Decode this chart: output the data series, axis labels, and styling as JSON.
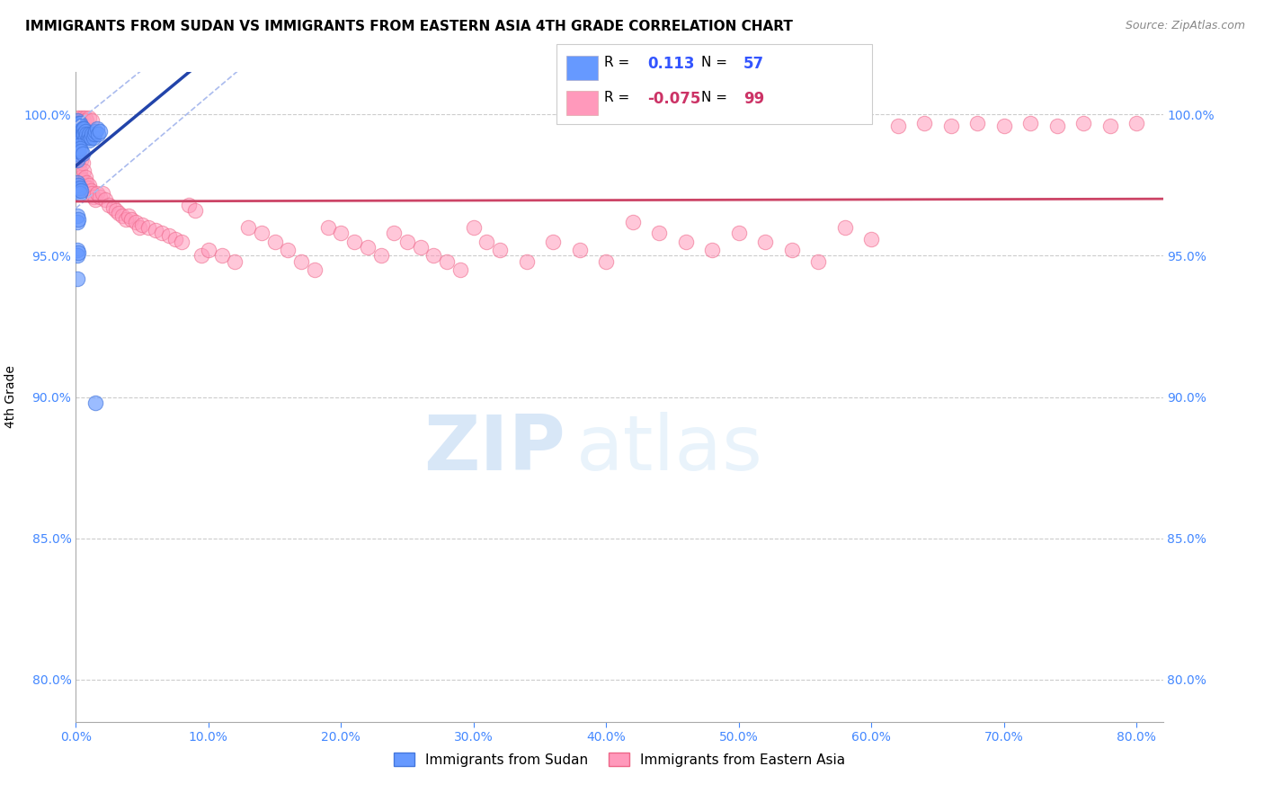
{
  "title": "IMMIGRANTS FROM SUDAN VS IMMIGRANTS FROM EASTERN ASIA 4TH GRADE CORRELATION CHART",
  "source": "Source: ZipAtlas.com",
  "ylabel": "4th Grade",
  "ytick_labels": [
    "80.0%",
    "85.0%",
    "90.0%",
    "95.0%",
    "100.0%"
  ],
  "ytick_values": [
    0.8,
    0.85,
    0.9,
    0.95,
    1.0
  ],
  "xtick_labels": [
    "0.0%",
    "10.0%",
    "20.0%",
    "30.0%",
    "40.0%",
    "50.0%",
    "60.0%",
    "70.0%",
    "80.0%"
  ],
  "xtick_values": [
    0.0,
    0.1,
    0.2,
    0.3,
    0.4,
    0.5,
    0.6,
    0.7,
    0.8
  ],
  "xlim": [
    0.0,
    0.82
  ],
  "ylim": [
    0.785,
    1.015
  ],
  "legend_r_blue": "0.113",
  "legend_n_blue": "57",
  "legend_r_pink": "-0.075",
  "legend_n_pink": "99",
  "blue_color": "#6699ff",
  "pink_color": "#ff99bb",
  "blue_edge": "#4477dd",
  "pink_edge": "#ee6688",
  "blue_label": "Immigrants from Sudan",
  "pink_label": "Immigrants from Eastern Asia",
  "watermark_zip": "ZIP",
  "watermark_atlas": "atlas",
  "blue_trend_color": "#2244aa",
  "pink_trend_color": "#cc4466",
  "blue_ci_color": "#aabbee",
  "blue_scatter_x": [
    0.001,
    0.001,
    0.001,
    0.001,
    0.001,
    0.002,
    0.002,
    0.002,
    0.002,
    0.003,
    0.003,
    0.003,
    0.003,
    0.004,
    0.004,
    0.004,
    0.005,
    0.005,
    0.006,
    0.006,
    0.007,
    0.007,
    0.008,
    0.009,
    0.01,
    0.01,
    0.011,
    0.012,
    0.013,
    0.014,
    0.015,
    0.016,
    0.017,
    0.018,
    0.001,
    0.001,
    0.001,
    0.002,
    0.002,
    0.003,
    0.004,
    0.005,
    0.001,
    0.001,
    0.002,
    0.002,
    0.003,
    0.003,
    0.004,
    0.001,
    0.001,
    0.002,
    0.001,
    0.001,
    0.002,
    0.001,
    0.015
  ],
  "blue_scatter_y": [
    0.998,
    0.996,
    0.994,
    0.992,
    0.99,
    0.997,
    0.995,
    0.993,
    0.991,
    0.997,
    0.995,
    0.993,
    0.991,
    0.996,
    0.994,
    0.992,
    0.995,
    0.993,
    0.995,
    0.993,
    0.994,
    0.992,
    0.993,
    0.992,
    0.993,
    0.991,
    0.992,
    0.993,
    0.992,
    0.993,
    0.994,
    0.995,
    0.993,
    0.994,
    0.988,
    0.986,
    0.984,
    0.989,
    0.987,
    0.988,
    0.987,
    0.986,
    0.976,
    0.974,
    0.975,
    0.973,
    0.974,
    0.972,
    0.973,
    0.964,
    0.962,
    0.963,
    0.952,
    0.95,
    0.951,
    0.942,
    0.898
  ],
  "pink_scatter_x": [
    0.001,
    0.001,
    0.002,
    0.002,
    0.003,
    0.003,
    0.004,
    0.004,
    0.005,
    0.005,
    0.006,
    0.007,
    0.008,
    0.009,
    0.01,
    0.011,
    0.012,
    0.013,
    0.015,
    0.016,
    0.018,
    0.02,
    0.022,
    0.025,
    0.028,
    0.03,
    0.032,
    0.035,
    0.038,
    0.04,
    0.042,
    0.045,
    0.048,
    0.05,
    0.055,
    0.06,
    0.065,
    0.07,
    0.075,
    0.08,
    0.085,
    0.09,
    0.095,
    0.1,
    0.11,
    0.12,
    0.13,
    0.14,
    0.15,
    0.16,
    0.17,
    0.18,
    0.19,
    0.2,
    0.21,
    0.22,
    0.23,
    0.24,
    0.25,
    0.26,
    0.27,
    0.28,
    0.29,
    0.3,
    0.31,
    0.32,
    0.34,
    0.36,
    0.38,
    0.4,
    0.42,
    0.44,
    0.46,
    0.48,
    0.5,
    0.52,
    0.54,
    0.56,
    0.58,
    0.6,
    0.001,
    0.002,
    0.003,
    0.004,
    0.005,
    0.006,
    0.007,
    0.008,
    0.01,
    0.012,
    0.62,
    0.64,
    0.66,
    0.68,
    0.7,
    0.72,
    0.74,
    0.76,
    0.78,
    0.8
  ],
  "pink_scatter_y": [
    0.99,
    0.985,
    0.988,
    0.982,
    0.985,
    0.98,
    0.984,
    0.978,
    0.983,
    0.977,
    0.98,
    0.978,
    0.976,
    0.974,
    0.975,
    0.973,
    0.972,
    0.971,
    0.97,
    0.972,
    0.971,
    0.972,
    0.97,
    0.968,
    0.967,
    0.966,
    0.965,
    0.964,
    0.963,
    0.964,
    0.963,
    0.962,
    0.96,
    0.961,
    0.96,
    0.959,
    0.958,
    0.957,
    0.956,
    0.955,
    0.968,
    0.966,
    0.95,
    0.952,
    0.95,
    0.948,
    0.96,
    0.958,
    0.955,
    0.952,
    0.948,
    0.945,
    0.96,
    0.958,
    0.955,
    0.953,
    0.95,
    0.958,
    0.955,
    0.953,
    0.95,
    0.948,
    0.945,
    0.96,
    0.955,
    0.952,
    0.948,
    0.955,
    0.952,
    0.948,
    0.962,
    0.958,
    0.955,
    0.952,
    0.958,
    0.955,
    0.952,
    0.948,
    0.96,
    0.956,
    0.999,
    0.998,
    0.999,
    0.998,
    0.999,
    0.998,
    0.999,
    0.998,
    0.999,
    0.998,
    0.996,
    0.997,
    0.996,
    0.997,
    0.996,
    0.997,
    0.996,
    0.997,
    0.996,
    0.997
  ]
}
